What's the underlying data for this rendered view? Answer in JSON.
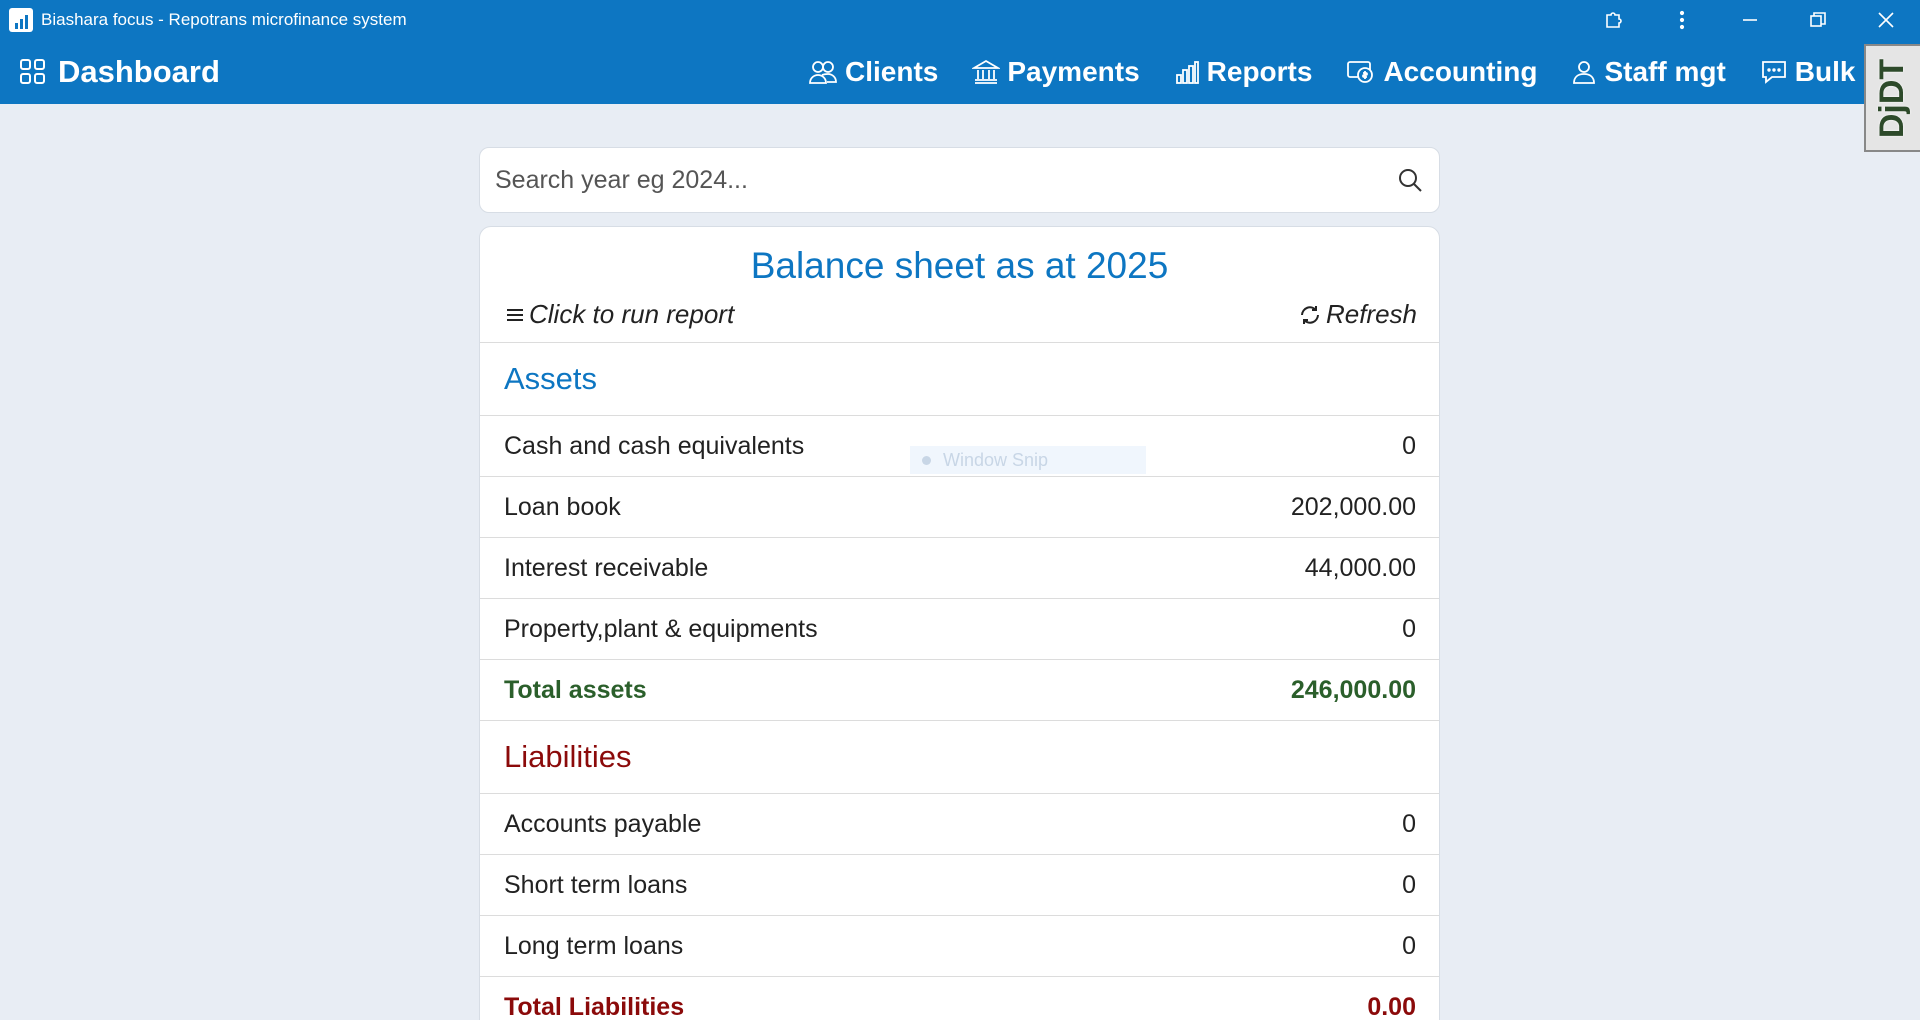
{
  "window": {
    "title": "Biashara focus - Repotrans microfinance system"
  },
  "navbar": {
    "brand": "Dashboard",
    "items": [
      {
        "label": "Clients",
        "icon": "users-icon"
      },
      {
        "label": "Payments",
        "icon": "bank-icon"
      },
      {
        "label": "Reports",
        "icon": "bar-chart-icon"
      },
      {
        "label": "Accounting",
        "icon": "cash-icon"
      },
      {
        "label": "Staff mgt",
        "icon": "person-icon"
      },
      {
        "label": "Bulk sms",
        "icon": "chat-icon"
      }
    ]
  },
  "debug_toolbar": {
    "label": "DjDT"
  },
  "search": {
    "placeholder": "Search year eg 2024..."
  },
  "report": {
    "title": "Balance sheet as at 2025",
    "run_label": "Click to run report",
    "refresh_label": "Refresh",
    "assets": {
      "heading": "Assets",
      "rows": [
        {
          "label": "Cash and cash equivalents",
          "value": "0"
        },
        {
          "label": "Loan book",
          "value": "202,000.00"
        },
        {
          "label": "Interest receivable",
          "value": "44,000.00"
        },
        {
          "label": "Property,plant & equipments",
          "value": "0"
        }
      ],
      "total_label": "Total assets",
      "total_value": "246,000.00"
    },
    "liabilities": {
      "heading": "Liabilities",
      "rows": [
        {
          "label": "Accounts payable",
          "value": "0"
        },
        {
          "label": "Short term loans",
          "value": "0"
        },
        {
          "label": "Long term loans",
          "value": "0"
        }
      ],
      "total_label": "Total Liabilities",
      "total_value": "0.00"
    }
  },
  "overlay": {
    "snip_label": "Window Snip"
  },
  "colors": {
    "primary": "#0d76c2",
    "background": "#e8edf4",
    "total_assets": "#2b5f2b",
    "liabilities": "#8b0a0a"
  }
}
